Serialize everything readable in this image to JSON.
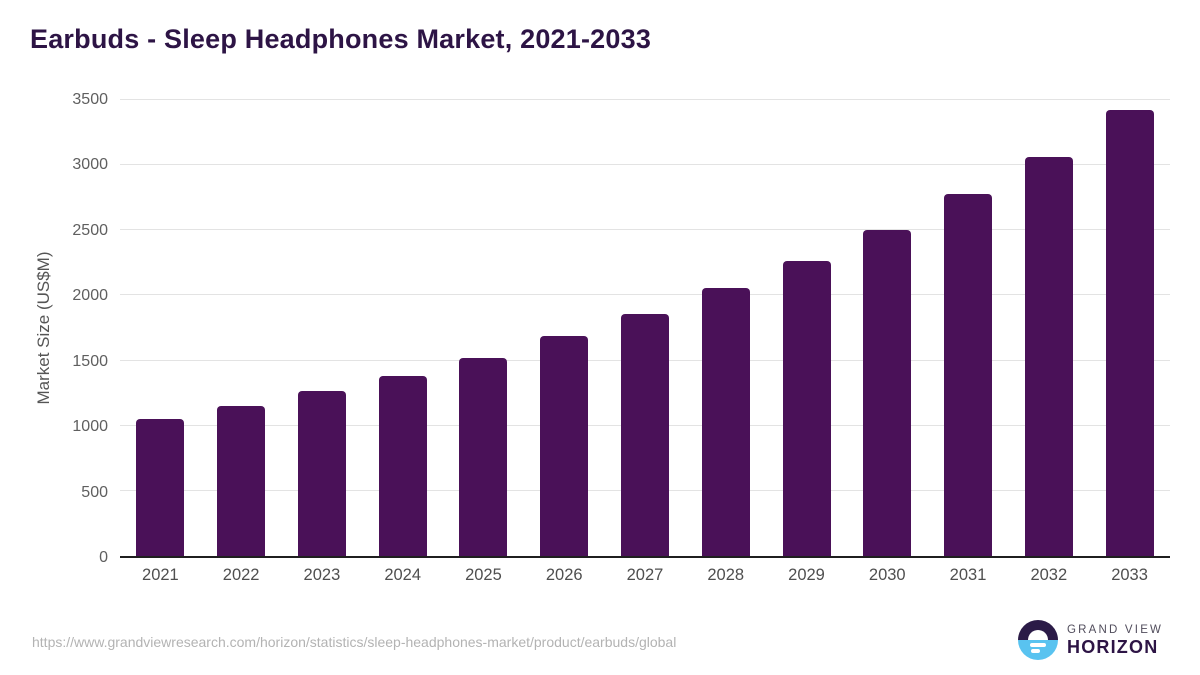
{
  "title": "Earbuds - Sleep Headphones Market, 2021-2033",
  "chart_data": {
    "type": "bar",
    "title": "Earbuds - Sleep Headphones Market, 2021-2033",
    "categories": [
      "2021",
      "2022",
      "2023",
      "2024",
      "2025",
      "2026",
      "2027",
      "2028",
      "2029",
      "2030",
      "2031",
      "2032",
      "2033"
    ],
    "values": [
      1050,
      1150,
      1265,
      1385,
      1520,
      1685,
      1855,
      2055,
      2265,
      2500,
      2775,
      3065,
      3420
    ],
    "xlabel": "",
    "ylabel": "Market Size (US$M)",
    "ylim": [
      0,
      3500
    ],
    "yticks": [
      0,
      500,
      1000,
      1500,
      2000,
      2500,
      3000,
      3500
    ],
    "grid": "horizontal-only",
    "legend": "none",
    "bar_color": "#4a1158"
  },
  "colors": {
    "bar": "#4a1158",
    "title_text": "#2d1445",
    "axis_line": "#1f1f1f",
    "gridline": "#e3e3e3",
    "tick_text": "#5f5f5f",
    "source_text": "#b3b3b3",
    "logo_dark": "#2b1b47",
    "logo_blue": "#59c3f0"
  },
  "footer": {
    "source_url": "https://www.grandviewresearch.com/horizon/statistics/sleep-headphones-market/product/earbuds/global",
    "logo": {
      "line1": "GRAND VIEW",
      "line2": "HORIZON"
    }
  }
}
